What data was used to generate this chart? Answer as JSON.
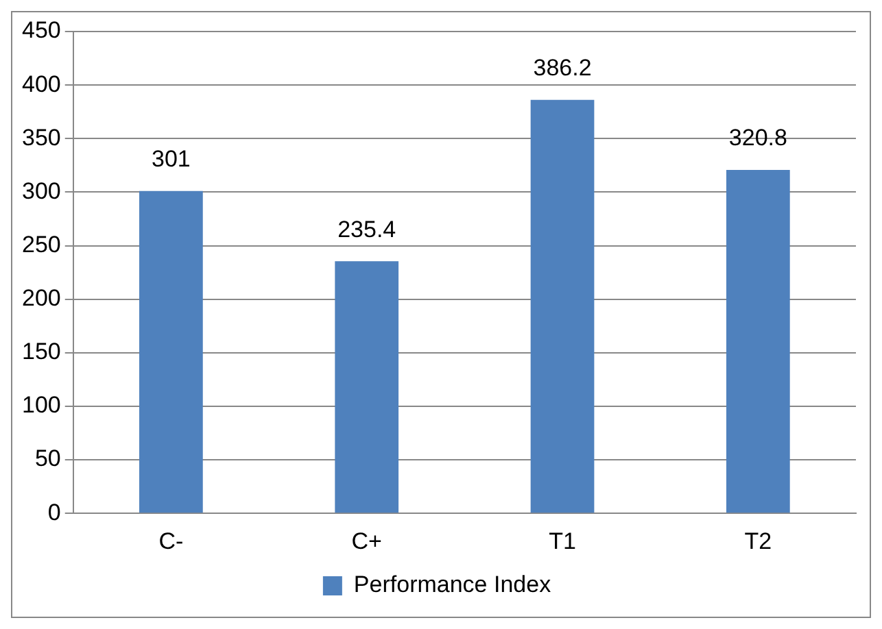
{
  "chart_data": {
    "type": "bar",
    "categories": [
      "C-",
      "C+",
      "T1",
      "T2"
    ],
    "series": [
      {
        "name": "Performance Index",
        "color": "#4f81bd",
        "values": [
          301,
          235.4,
          386.2,
          320.8
        ]
      }
    ],
    "ylim": [
      0,
      450
    ],
    "yticks": [
      0,
      50,
      100,
      150,
      200,
      250,
      300,
      350,
      400,
      450
    ],
    "grid": "y",
    "legend": "bottom",
    "data_labels": true
  }
}
